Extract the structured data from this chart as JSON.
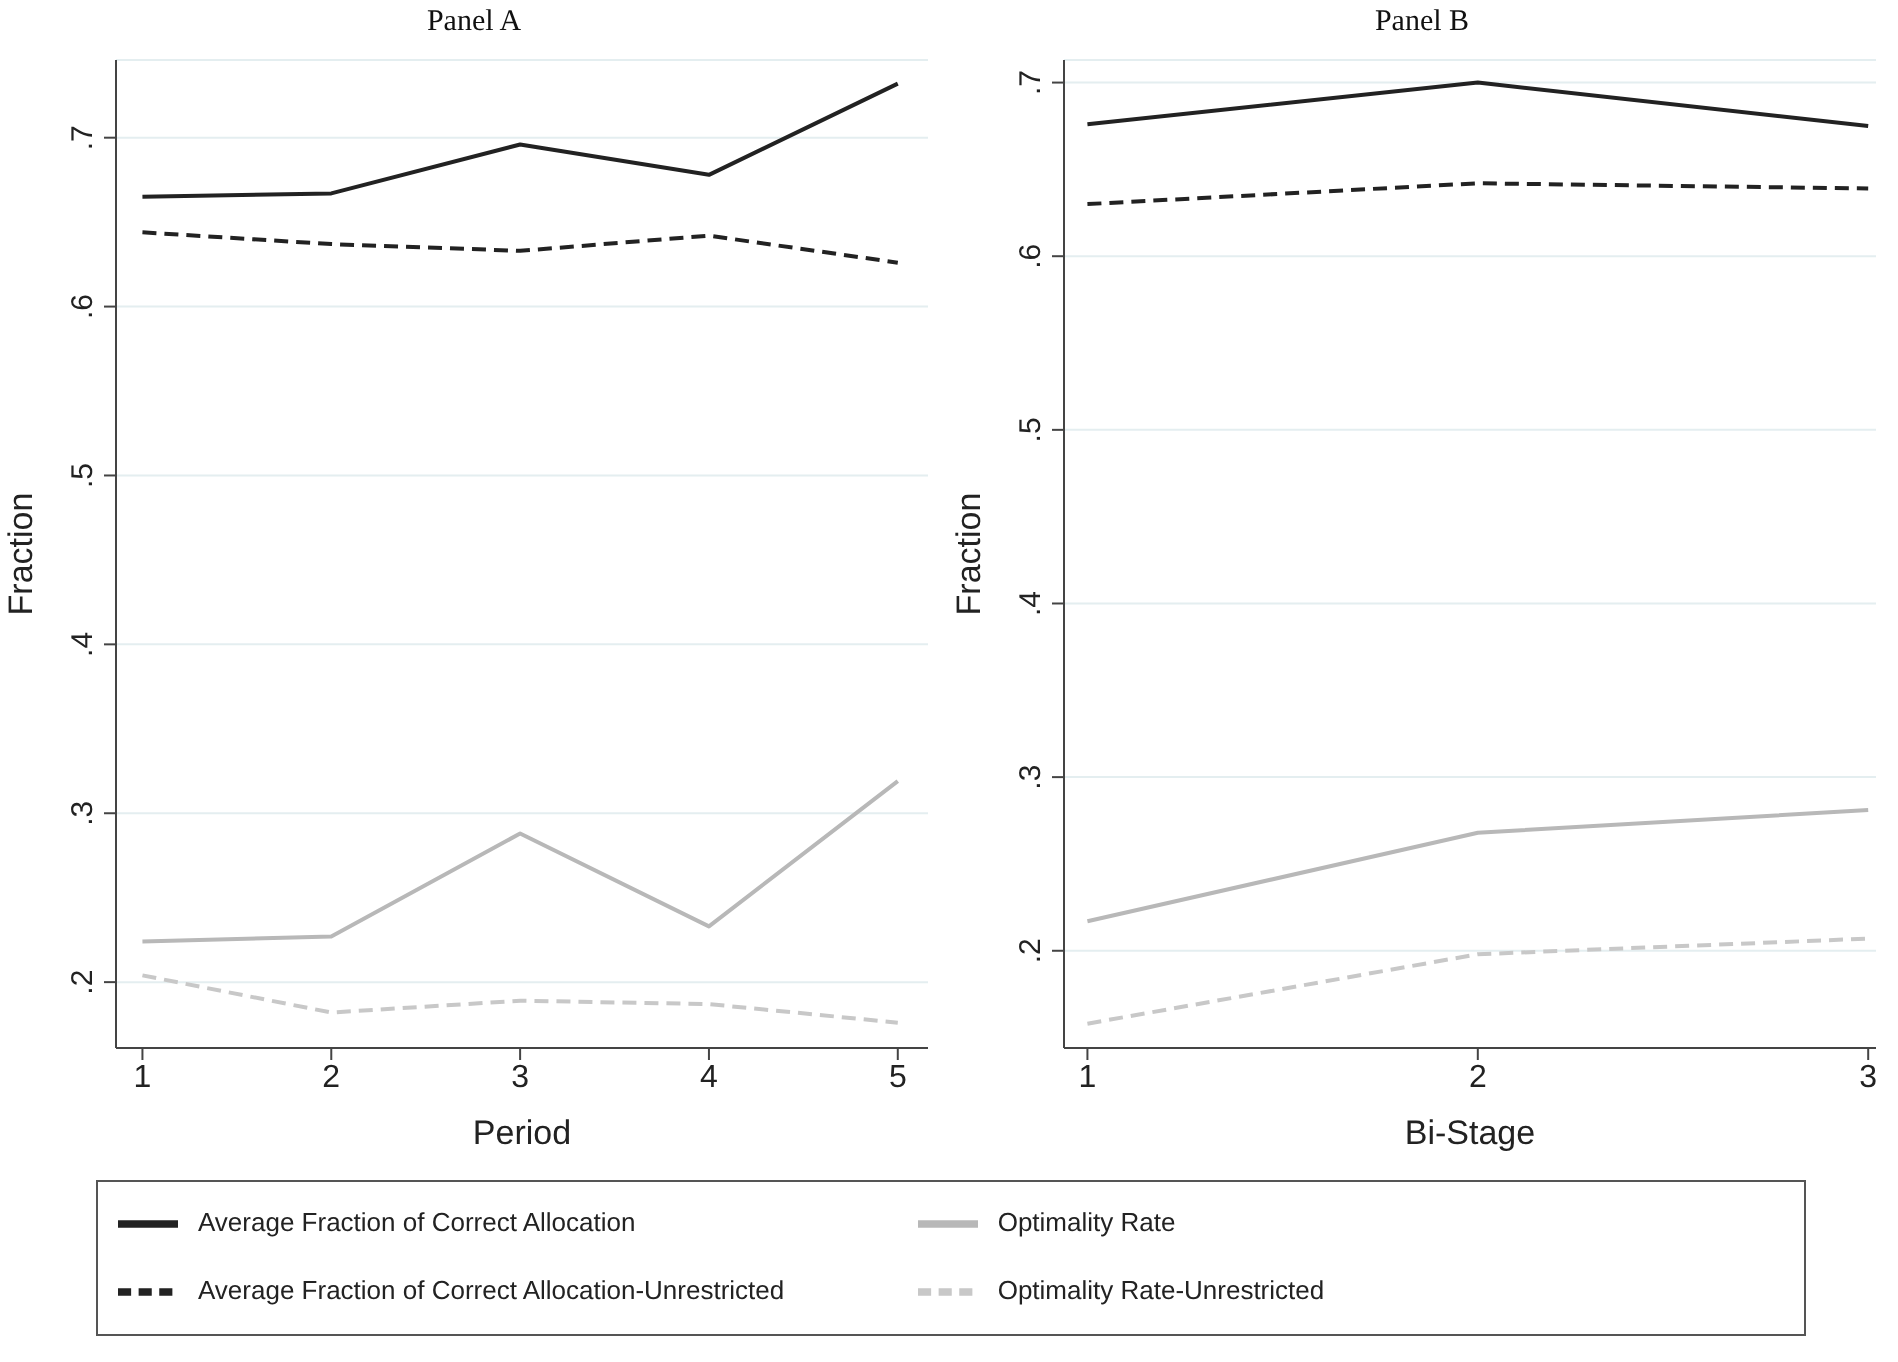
{
  "chart_data": [
    {
      "type": "line",
      "title": "Panel A",
      "xlabel": "Period",
      "ylabel": "Fraction",
      "x": [
        1,
        2,
        3,
        4,
        5
      ],
      "xlim": [
        0.86,
        5.16
      ],
      "xticks": [
        1,
        2,
        3,
        4,
        5
      ],
      "ylim": [
        0.161,
        0.746
      ],
      "yticks": [
        {
          "value": 0.2,
          "label": ".2"
        },
        {
          "value": 0.3,
          "label": ".3"
        },
        {
          "value": 0.4,
          "label": ".4"
        },
        {
          "value": 0.5,
          "label": ".5"
        },
        {
          "value": 0.6,
          "label": ".6"
        },
        {
          "value": 0.7,
          "label": ".7"
        }
      ],
      "grid": "y",
      "legend": "bottom",
      "marker": "none",
      "series": [
        {
          "name": "Average Fraction of Correct Allocation",
          "color": "#222222",
          "line_style": "solid",
          "values": [
            0.665,
            0.667,
            0.696,
            0.678,
            0.732
          ]
        },
        {
          "name": "Average Fraction of Correct Allocation-Unrestricted",
          "color": "#222222",
          "line_style": "dashed",
          "values": [
            0.644,
            0.637,
            0.633,
            0.642,
            0.626
          ]
        },
        {
          "name": "Optimality Rate",
          "color": "#b8b8b8",
          "line_style": "solid",
          "values": [
            0.224,
            0.227,
            0.288,
            0.233,
            0.319
          ]
        },
        {
          "name": "Optimality Rate-Unrestricted",
          "color": "#c8c8c8",
          "line_style": "dashed",
          "values": [
            0.204,
            0.182,
            0.189,
            0.187,
            0.176
          ]
        }
      ]
    },
    {
      "type": "line",
      "title": "Panel B",
      "xlabel": "Bi-Stage",
      "ylabel": "Fraction",
      "x": [
        1,
        2,
        3
      ],
      "xlim": [
        0.94,
        3.02
      ],
      "xticks": [
        1,
        2,
        3
      ],
      "ylim": [
        0.144,
        0.713
      ],
      "yticks": [
        {
          "value": 0.2,
          "label": ".2"
        },
        {
          "value": 0.3,
          "label": ".3"
        },
        {
          "value": 0.4,
          "label": ".4"
        },
        {
          "value": 0.5,
          "label": ".5"
        },
        {
          "value": 0.6,
          "label": ".6"
        },
        {
          "value": 0.7,
          "label": ".7"
        }
      ],
      "grid": "y",
      "marker": "none",
      "series": [
        {
          "color": "#222222",
          "line_style": "solid",
          "values": [
            0.676,
            0.7,
            0.675
          ]
        },
        {
          "color": "#222222",
          "line_style": "dashed",
          "values": [
            0.63,
            0.642,
            0.639
          ]
        },
        {
          "color": "#b8b8b8",
          "line_style": "solid",
          "values": [
            0.217,
            0.268,
            0.281
          ]
        },
        {
          "color": "#c8c8c8",
          "line_style": "dashed",
          "values": [
            0.158,
            0.198,
            0.207
          ]
        }
      ]
    }
  ]
}
